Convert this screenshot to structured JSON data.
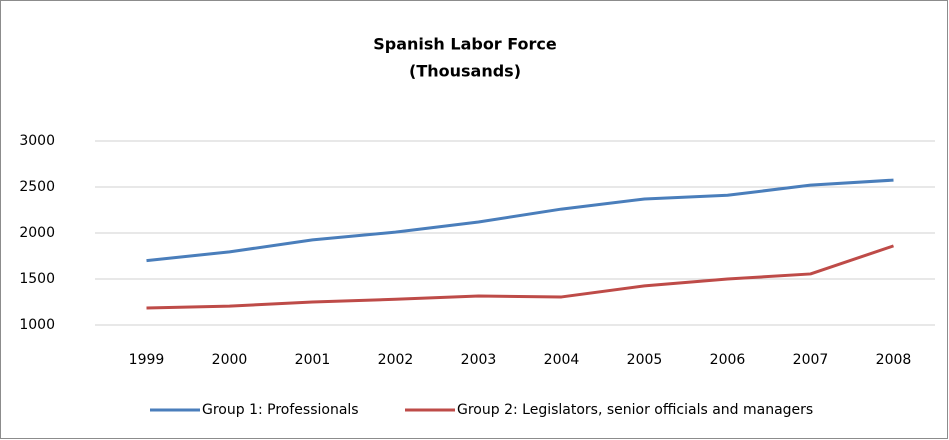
{
  "chart_data": {
    "type": "line",
    "title": "Spanish Labor Force",
    "subtitle": "(Thousands)",
    "categories": [
      "1999",
      "2000",
      "2001",
      "2002",
      "2003",
      "2004",
      "2005",
      "2006",
      "2007",
      "2008"
    ],
    "series": [
      {
        "name": "Group 1: Professionals",
        "color": "#4a7ebb",
        "values": [
          1700,
          1795,
          1925,
          2010,
          2120,
          2260,
          2370,
          2410,
          2520,
          2575
        ]
      },
      {
        "name": "Group 2: Legislators, senior officials and managers",
        "color": "#be4b48",
        "values": [
          1185,
          1205,
          1250,
          1280,
          1315,
          1305,
          1425,
          1500,
          1555,
          1860
        ]
      }
    ],
    "ylim": [
      1000,
      3000
    ],
    "yticks": [
      1000,
      1500,
      2000,
      2500,
      3000
    ],
    "grid": true,
    "legend": "bottom"
  }
}
